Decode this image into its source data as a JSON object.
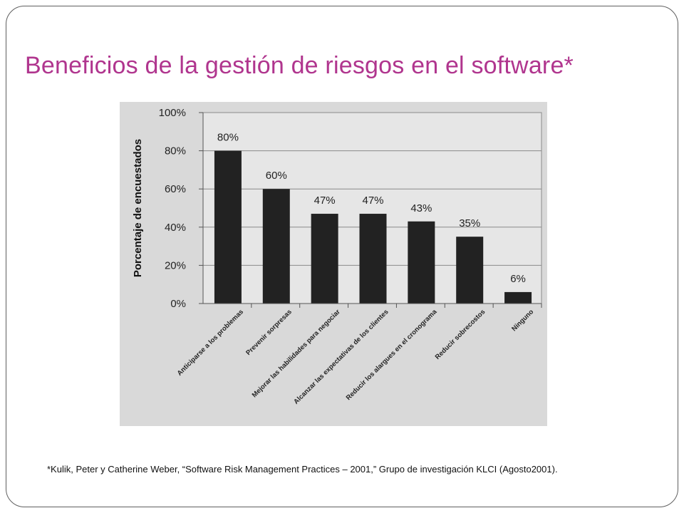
{
  "slide": {
    "title": "Beneficios de la gestión de riesgos en el software*",
    "footnote": "*Kulik, Peter y Catherine Weber, “Software Risk Management Practices – 2001,” Grupo de investigación KLCI (Agosto2001).",
    "title_color": "#b0358e"
  },
  "chart_data": {
    "type": "bar",
    "ylabel": "Porcentaje de encuestados",
    "ylim": [
      0,
      100
    ],
    "yticks": [
      "0%",
      "20%",
      "40%",
      "60%",
      "80%",
      "100%"
    ],
    "ytick_values": [
      0,
      20,
      40,
      60,
      80,
      100
    ],
    "grid": true,
    "categories": [
      "Anticiparse a los problemas",
      "Prevenir sorpresas",
      "Mejorar las habilidades para negociar",
      "Alcanzar las expectativas de los clientes",
      "Reducir los alargues en el cronograma",
      "Reducir sobrecostos",
      "Ninguno"
    ],
    "values": [
      80,
      60,
      47,
      47,
      43,
      35,
      6
    ],
    "data_labels": [
      "80%",
      "60%",
      "47%",
      "47%",
      "43%",
      "35%",
      "6%"
    ],
    "bar_color": "#222222",
    "plot_background": "#e6e6e6",
    "outer_background": "#d9d9d9"
  }
}
